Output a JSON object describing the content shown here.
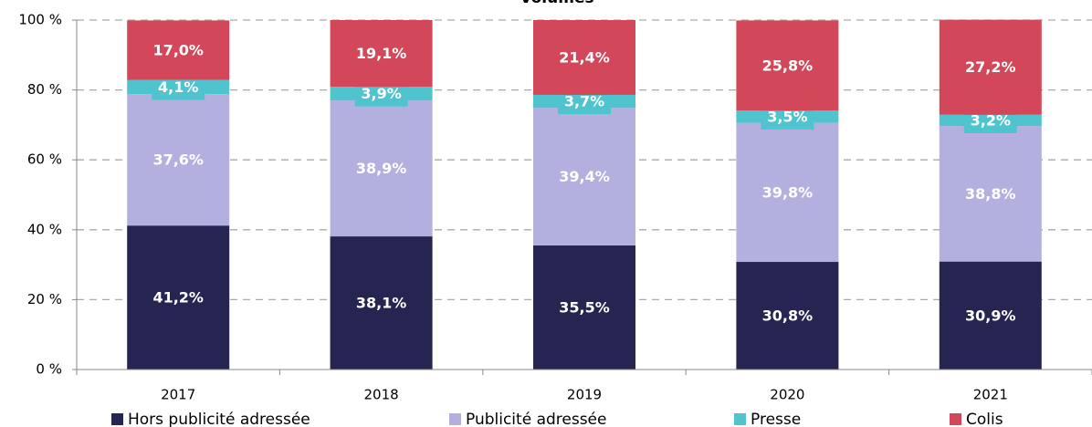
{
  "chart_data": {
    "type": "stacked_bar",
    "title": "Volumes",
    "categories": [
      "2017",
      "2018",
      "2019",
      "2020",
      "2021"
    ],
    "series": [
      {
        "name": "Hors publicité adressée",
        "color": "#262451",
        "values": [
          41.2,
          38.1,
          35.5,
          30.8,
          30.9
        ],
        "value_labels": [
          "41,2%",
          "38,1%",
          "35,5%",
          "30,8%",
          "30,9%"
        ]
      },
      {
        "name": "Publicité adressée",
        "color": "#b3b0e0",
        "values": [
          37.6,
          38.9,
          39.4,
          39.8,
          38.8
        ],
        "value_labels": [
          "37,6%",
          "38,9%",
          "39,4%",
          "39,8%",
          "38,8%"
        ]
      },
      {
        "name": "Presse",
        "color": "#4fc4cf",
        "values": [
          4.1,
          3.9,
          3.7,
          3.5,
          3.2
        ],
        "value_labels": [
          "4,1%",
          "3,9%",
          "3,7%",
          "3,5%",
          "3,2%"
        ]
      },
      {
        "name": "Colis",
        "color": "#d2485a",
        "values": [
          17.0,
          19.1,
          21.4,
          25.8,
          27.2
        ],
        "value_labels": [
          "17,0%",
          "19,1%",
          "21,4%",
          "25,8%",
          "27,2%"
        ]
      }
    ],
    "ylim": [
      0,
      100
    ],
    "yticks": [
      {
        "value": 0,
        "label": "0 %"
      },
      {
        "value": 20,
        "label": "20 %"
      },
      {
        "value": 40,
        "label": "40 %"
      },
      {
        "value": 60,
        "label": "60 %"
      },
      {
        "value": 80,
        "label": "80 %"
      },
      {
        "value": 100,
        "label": "100 %"
      }
    ],
    "grid": true,
    "legend": "bottom"
  }
}
